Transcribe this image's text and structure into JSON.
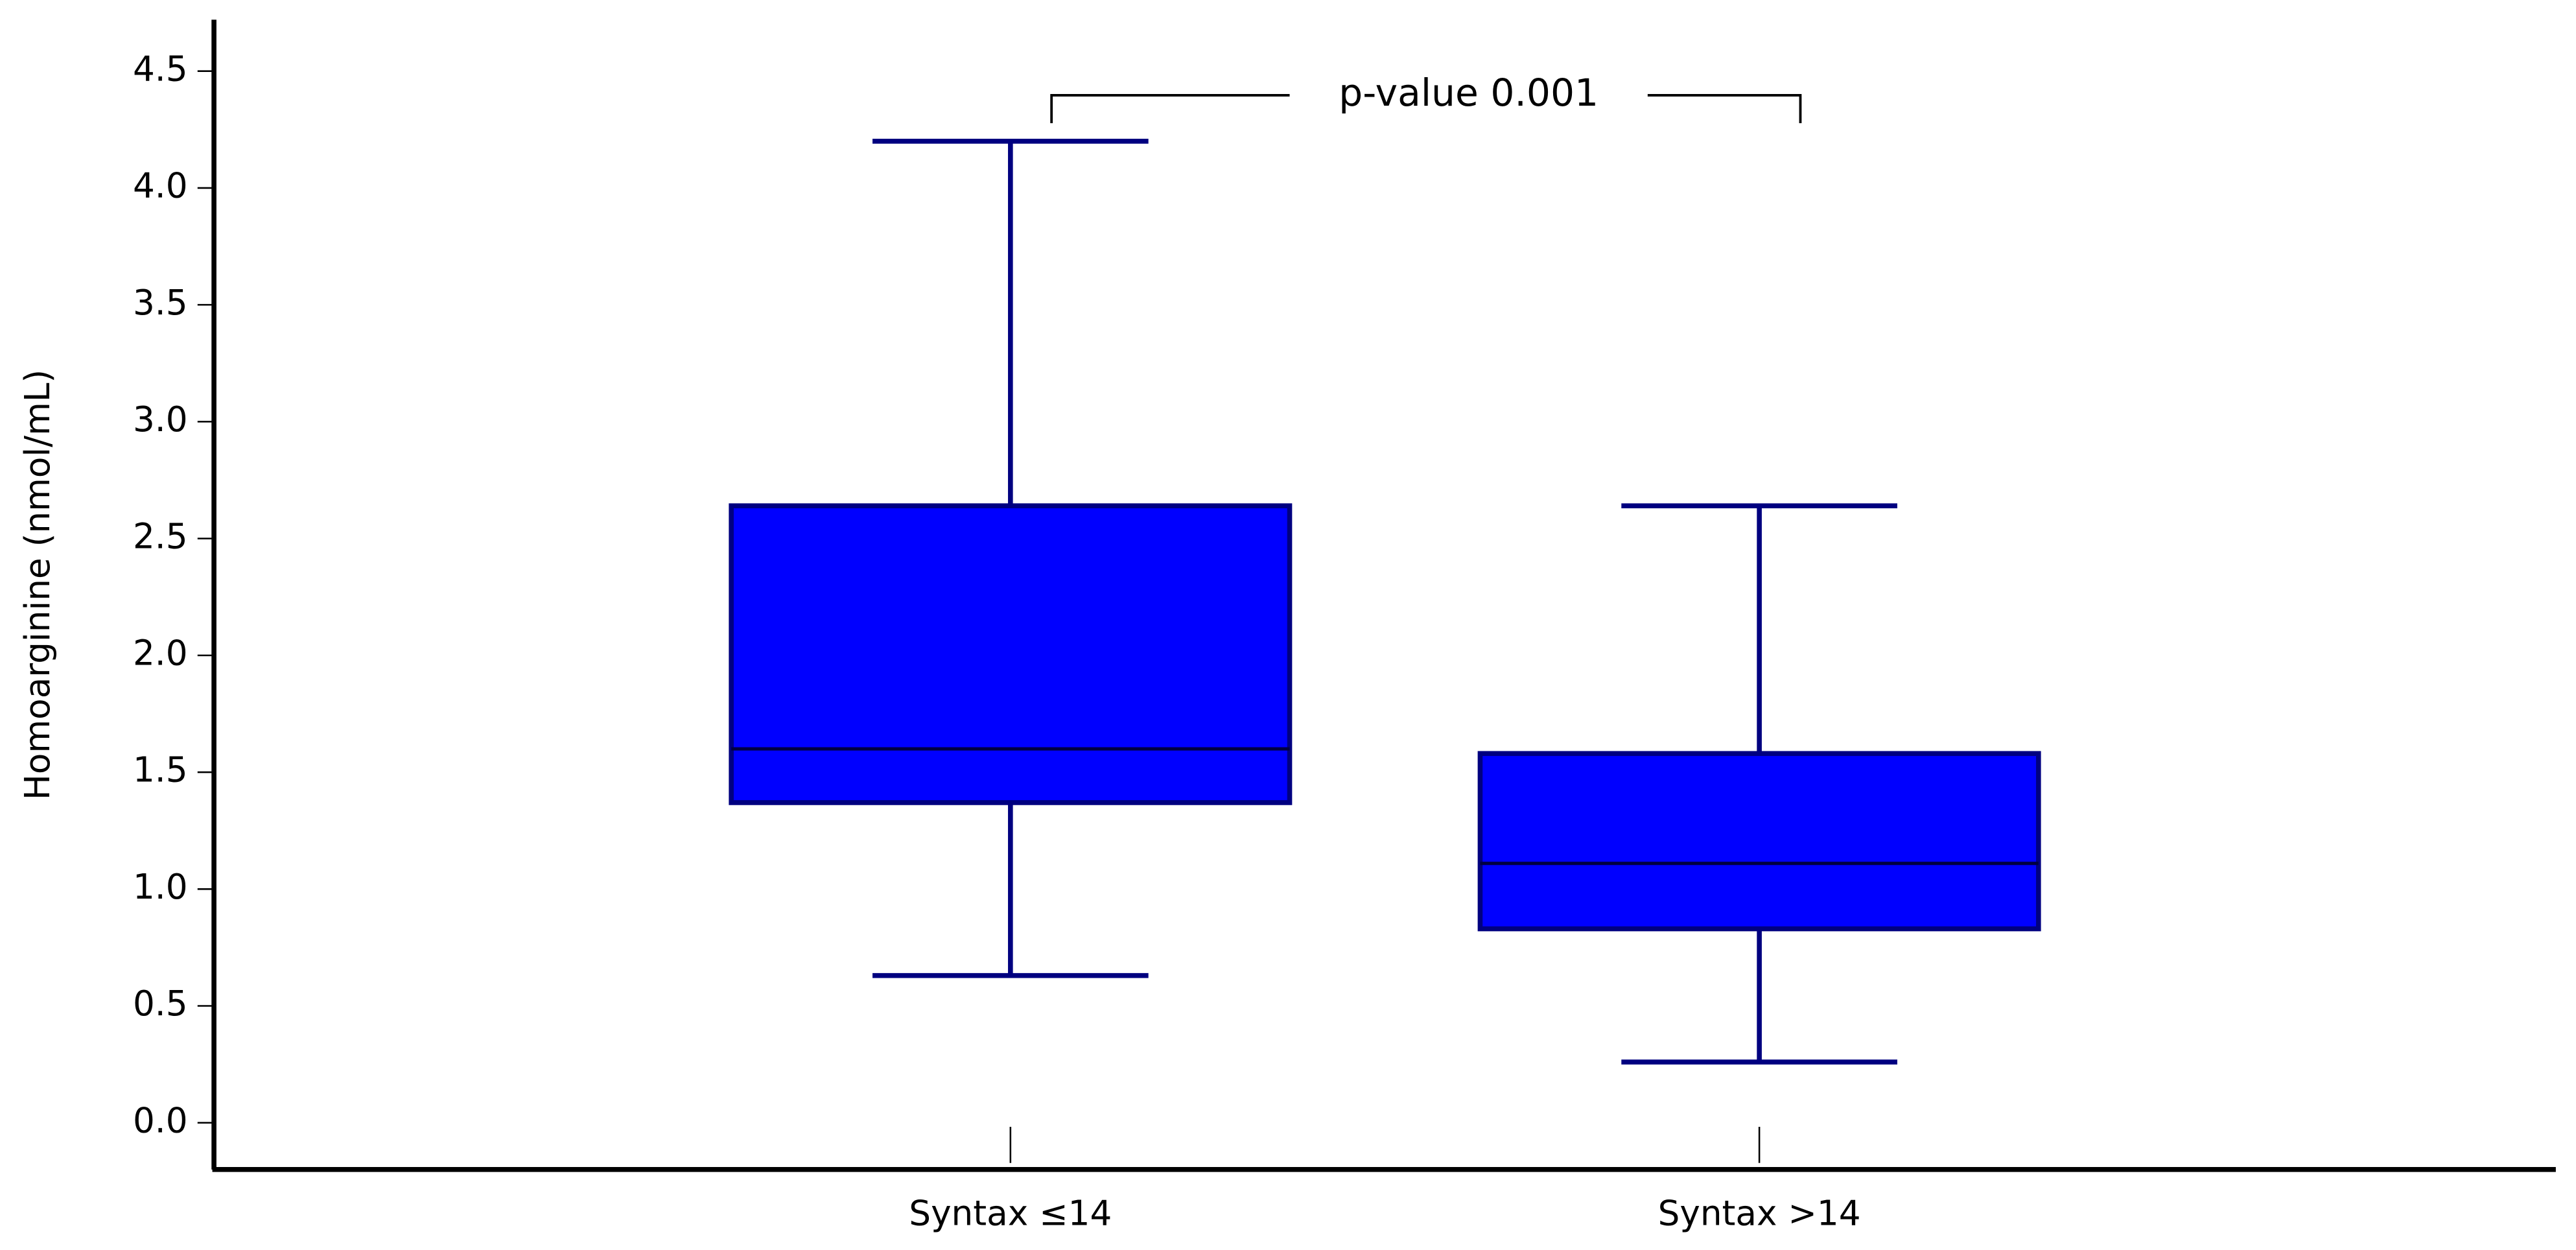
{
  "chart_data": {
    "type": "box",
    "y_label": "Homoarginine (nmol/mL)",
    "annotation": "p-value 0.001",
    "categories": [
      "Syntax ≤14",
      "Syntax >14"
    ],
    "boxes": [
      {
        "min": 0.63,
        "q1": 1.37,
        "median": 1.6,
        "q3": 2.64,
        "max": 4.2
      },
      {
        "min": 0.26,
        "q1": 0.83,
        "median": 1.11,
        "q3": 1.58,
        "max": 2.64
      }
    ],
    "color": "#0000ff",
    "edge_color": "#000080",
    "ylim": [
      -0.2,
      4.72
    ],
    "yticks": [
      {
        "value": 0,
        "label": "0.0"
      },
      0.5,
      {
        "value": 1,
        "label": "1.0"
      },
      1.5,
      {
        "value": 2,
        "label": "2.0"
      },
      2.5,
      {
        "value": 3,
        "label": "3.0"
      },
      3.5,
      {
        "value": 4,
        "label": "4.0"
      },
      4.5
    ]
  }
}
